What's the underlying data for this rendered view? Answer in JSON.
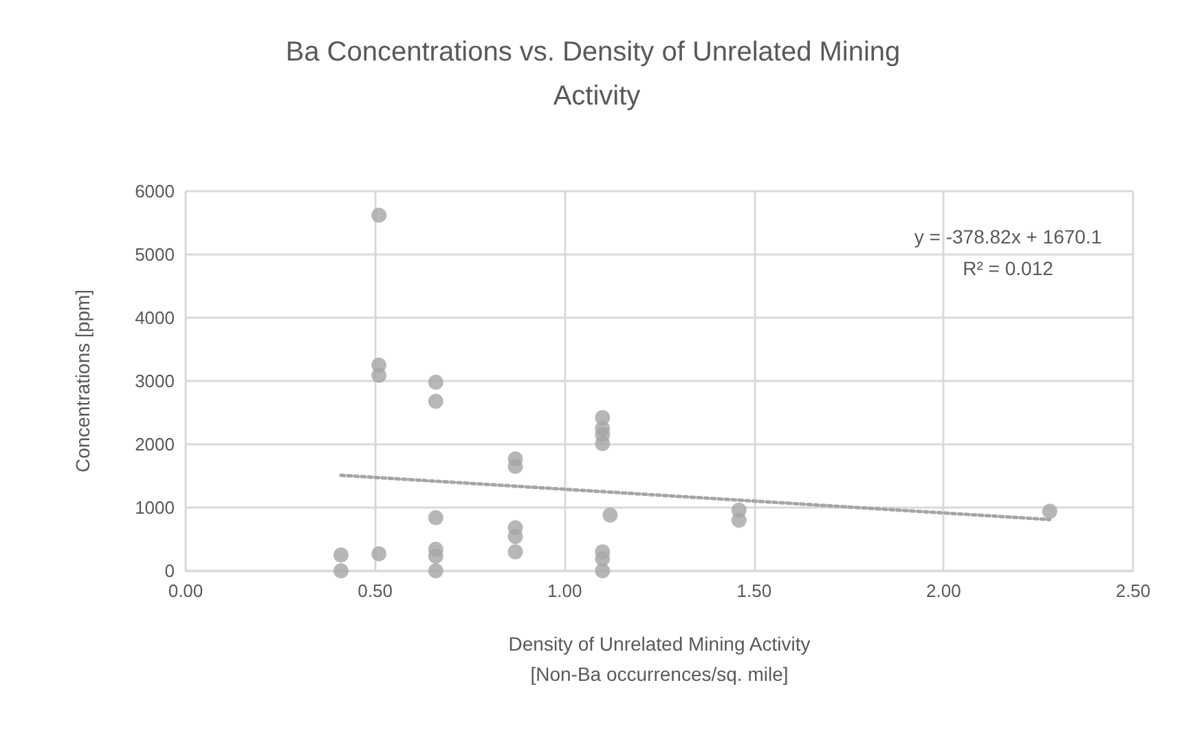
{
  "chart_data": {
    "type": "scatter",
    "title": "Ba Concentrations vs. Density of Unrelated Mining Activity",
    "xlabel": "Density of Unrelated Mining Activity\n[Non-Ba occurrences/sq. mile]",
    "ylabel": "Concentrations [ppm]",
    "series": [
      {
        "color": "#a5a5a5",
        "x": [
          0.41,
          0.41,
          0.51,
          0.51,
          0.51,
          0.51,
          0.66,
          0.66,
          0.66,
          0.66,
          0.66,
          0.66,
          0.87,
          0.87,
          0.87,
          0.87,
          0.87,
          1.1,
          1.1,
          1.1,
          1.1,
          1.1,
          1.1,
          1.1,
          1.12,
          1.46,
          1.46,
          2.28
        ],
        "values": [
          250,
          0,
          5620,
          3250,
          3090,
          270,
          2980,
          2680,
          840,
          340,
          230,
          0,
          1770,
          1650,
          680,
          540,
          300,
          2420,
          2250,
          2150,
          2010,
          300,
          190,
          0,
          880,
          960,
          800,
          940
        ]
      },
      {
        "type": "line",
        "color": "#a5a5a5",
        "line_style": "dotted",
        "marker": "none",
        "x": [
          0.41,
          2.28
        ],
        "values": [
          1510,
          810
        ]
      }
    ],
    "xlim": [
      0,
      2.5
    ],
    "xticks": [
      {
        "value": 0,
        "label": "0.00"
      },
      {
        "value": 0.5,
        "label": "0.50"
      },
      {
        "value": 1,
        "label": "1.00"
      },
      {
        "value": 1.5,
        "label": "1.50"
      },
      {
        "value": 2,
        "label": "2.00"
      },
      {
        "value": 2.5,
        "label": "2.50"
      }
    ],
    "ylim": [
      0,
      6000
    ],
    "yticks": [
      0,
      1000,
      2000,
      3000,
      4000,
      5000,
      6000
    ],
    "annotations": [
      "y = -378.82x + 1670.1",
      "R² = 0.012"
    ],
    "grid": true,
    "marker": "circle"
  }
}
